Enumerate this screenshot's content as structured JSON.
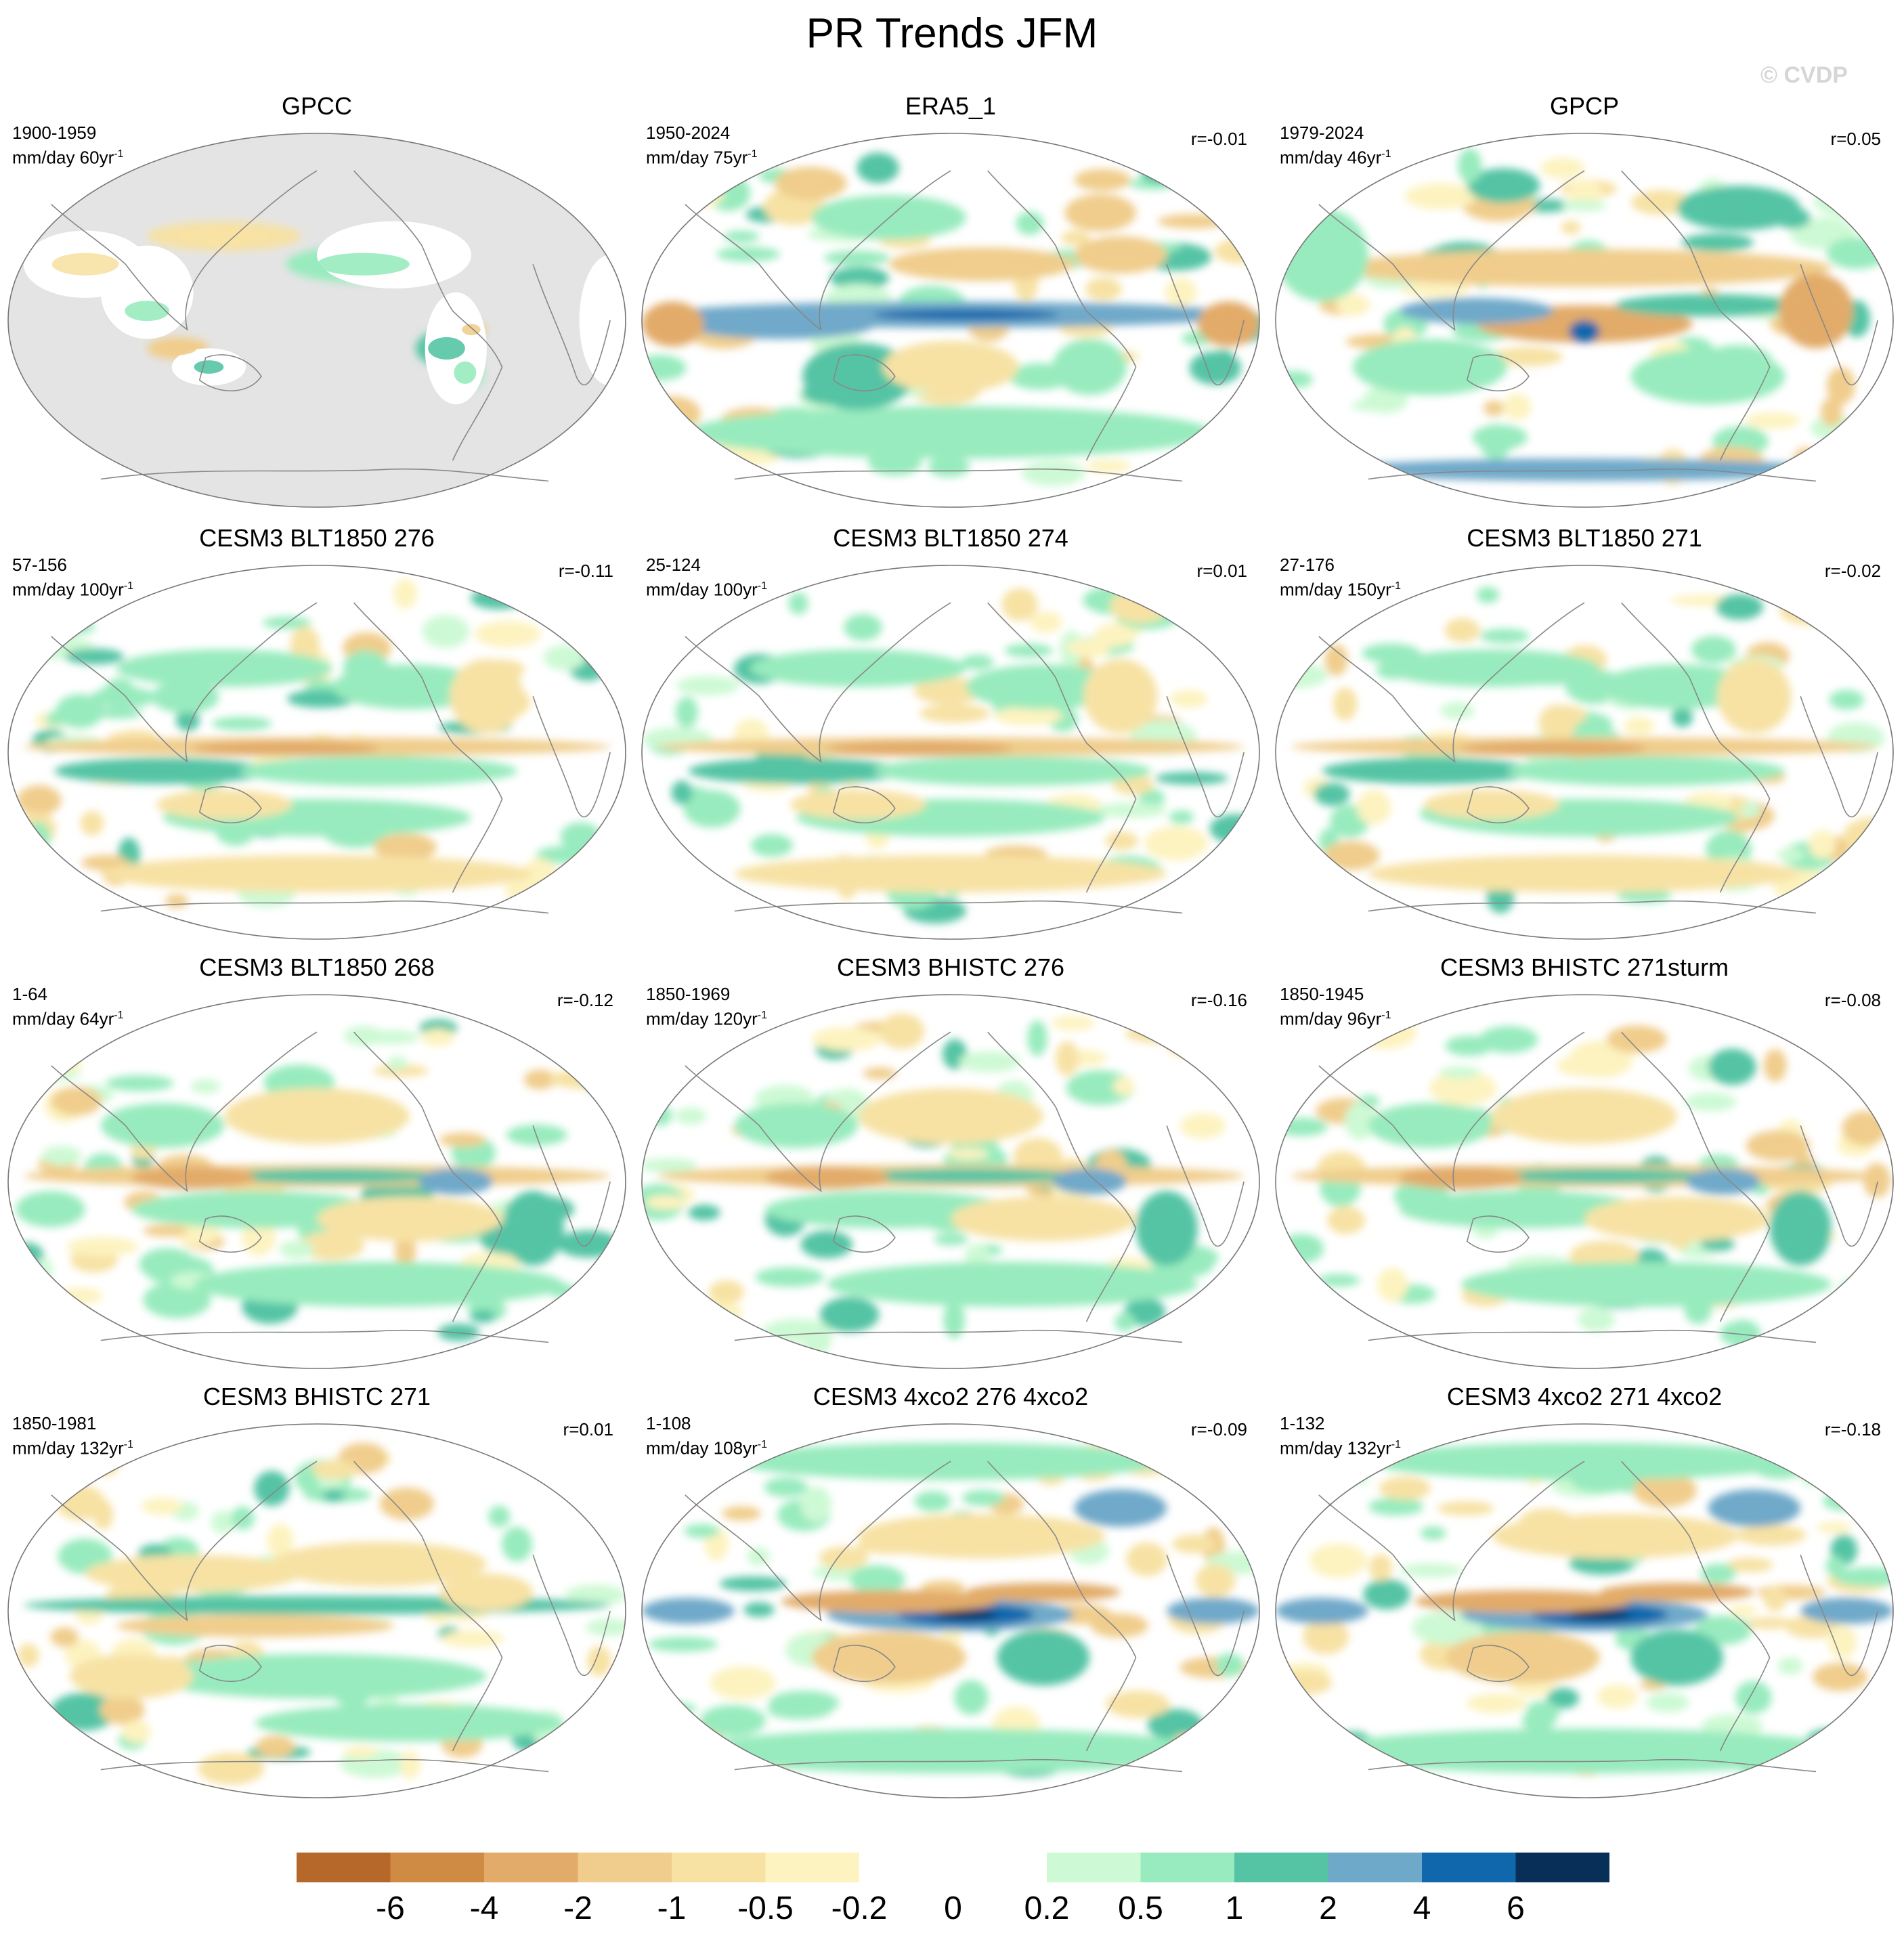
{
  "title": "PR Trends JFM",
  "watermark": "© CVDP",
  "colors": {
    "scale": [
      "#b5682a",
      "#cf8a43",
      "#e2ab69",
      "#f0cd8c",
      "#f7e2a4",
      "#fdf3c0",
      "#ffffff",
      "#ffffff",
      "#cdf9d4",
      "#98ebbe",
      "#55c4a4",
      "#6fa9c9",
      "#1167ac",
      "#072f57"
    ],
    "land_mask": "#e4e4e4",
    "coast": "#888888"
  },
  "panels": [
    {
      "title": "GPCC",
      "period": "1900-1959",
      "units": "mm/day 60yr",
      "r": "",
      "masked": true,
      "pattern": 0
    },
    {
      "title": "ERA5_1",
      "period": "1950-2024",
      "units": "mm/day 75yr",
      "r": "r=-0.01",
      "masked": false,
      "pattern": 1
    },
    {
      "title": "GPCP",
      "period": "1979-2024",
      "units": "mm/day 46yr",
      "r": "r=0.05",
      "masked": false,
      "pattern": 2
    },
    {
      "title": "CESM3 BLT1850 276",
      "period": "57-156",
      "units": "mm/day 100yr",
      "r": "r=-0.11",
      "masked": false,
      "pattern": 3
    },
    {
      "title": "CESM3 BLT1850 274",
      "period": "25-124",
      "units": "mm/day 100yr",
      "r": "r=0.01",
      "masked": false,
      "pattern": 3
    },
    {
      "title": "CESM3 BLT1850 271",
      "period": "27-176",
      "units": "mm/day 150yr",
      "r": "r=-0.02",
      "masked": false,
      "pattern": 3
    },
    {
      "title": "CESM3 BLT1850 268",
      "period": "1-64",
      "units": "mm/day 64yr",
      "r": "r=-0.12",
      "masked": false,
      "pattern": 4
    },
    {
      "title": "CESM3 BHISTC 276",
      "period": "1850-1969",
      "units": "mm/day 120yr",
      "r": "r=-0.16",
      "masked": false,
      "pattern": 4
    },
    {
      "title": "CESM3 BHISTC 271sturm",
      "period": "1850-1945",
      "units": "mm/day 96yr",
      "r": "r=-0.08",
      "masked": false,
      "pattern": 4
    },
    {
      "title": "CESM3 BHISTC 271",
      "period": "1850-1981",
      "units": "mm/day 132yr",
      "r": "r=0.01",
      "masked": false,
      "pattern": 5
    },
    {
      "title": "CESM3 4xco2 276 4xco2",
      "period": "1-108",
      "units": "mm/day 108yr",
      "r": "r=-0.09",
      "masked": false,
      "pattern": 6
    },
    {
      "title": "CESM3 4xco2 271 4xco2",
      "period": "1-132",
      "units": "mm/day 132yr",
      "r": "r=-0.18",
      "masked": false,
      "pattern": 6
    }
  ],
  "units_exponent": "-1",
  "colorbar": {
    "labels": [
      "-6",
      "-4",
      "-2",
      "-1",
      "-0.5",
      "-0.2",
      "0",
      "0.2",
      "0.5",
      "1",
      "2",
      "4",
      "6"
    ]
  }
}
